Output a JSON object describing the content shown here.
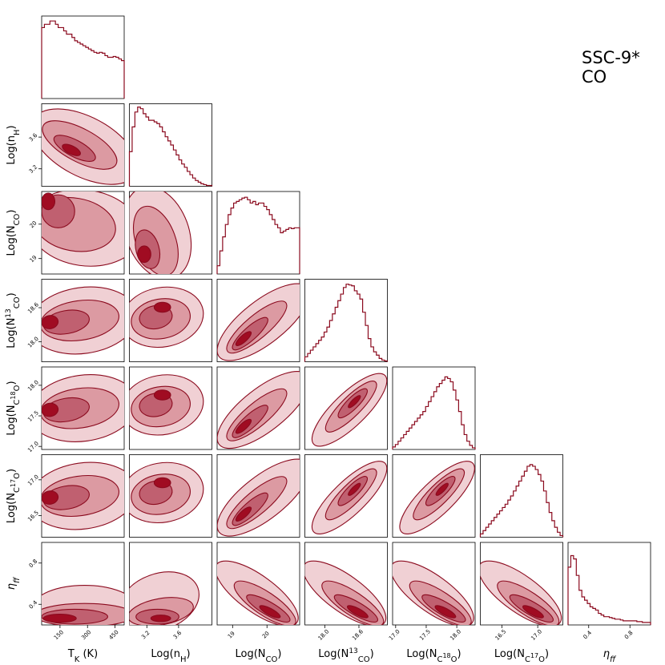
{
  "object_label": {
    "line1": "SSC-9*",
    "line2": "CO"
  },
  "colors": {
    "line": "#8b0a1e",
    "fill_outer": "#f0d0d4",
    "fill_mid": "#dc9aa2",
    "fill_inner": "#c06070",
    "fill_core": "#a00c22"
  },
  "chart_data": {
    "type": "corner",
    "parameters": [
      {
        "id": "tk",
        "label_html": "T<tspan font-size='10' baseline-shift='sub'>K</tspan> (K)",
        "range": [
          50,
          500
        ],
        "ticks": [
          150,
          300,
          450
        ],
        "tick_labels": [
          "150",
          "300",
          "450"
        ]
      },
      {
        "id": "nh",
        "label_html": "Log(n<tspan font-size='10' baseline-shift='sub'>H</tspan>)",
        "range": [
          2.98,
          4.02
        ],
        "ticks": [
          3.2,
          3.6
        ],
        "tick_labels": [
          "3.2",
          "3.6"
        ]
      },
      {
        "id": "nco",
        "label_html": "Log(N<tspan font-size='10' baseline-shift='sub'>CO</tspan>)",
        "range": [
          18.55,
          20.95
        ],
        "ticks": [
          19,
          20
        ],
        "tick_labels": [
          "19",
          "20"
        ]
      },
      {
        "id": "n13",
        "label_html": "Log(N<tspan font-size='9' baseline-shift='super'>13</tspan><tspan font-size='10' baseline-shift='sub'>CO</tspan>)",
        "range": [
          17.65,
          19.1
        ],
        "ticks": [
          18.0,
          18.6
        ],
        "tick_labels": [
          "18.0",
          "18.6"
        ]
      },
      {
        "id": "n18",
        "label_html": "Log(N<tspan font-size='10' baseline-shift='sub'>C<tspan font-size='8' baseline-shift='super'>18</tspan>O</tspan>)",
        "range": [
          16.95,
          18.3
        ],
        "ticks": [
          17.0,
          17.5,
          18.0
        ],
        "tick_labels": [
          "17.0",
          "17.5",
          "18.0"
        ]
      },
      {
        "id": "n17",
        "label_html": "Log(N<tspan font-size='10' baseline-shift='sub'>C<tspan font-size='8' baseline-shift='super'>17</tspan>O</tspan>)",
        "range": [
          16.2,
          17.35
        ],
        "ticks": [
          16.5,
          17.0
        ],
        "tick_labels": [
          "16.5",
          "17.0"
        ]
      },
      {
        "id": "eta",
        "label_html": "<tspan font-style='italic'>η<tspan font-size='10' baseline-shift='sub'>ff</tspan></tspan>",
        "range": [
          0.2,
          1.0
        ],
        "ticks": [
          0.4,
          0.8
        ],
        "tick_labels": [
          "0.4",
          "0.8"
        ]
      }
    ],
    "histograms": [
      [
        0.86,
        0.9,
        0.9,
        0.94,
        0.94,
        0.9,
        0.86,
        0.86,
        0.82,
        0.78,
        0.78,
        0.74,
        0.7,
        0.68,
        0.66,
        0.64,
        0.62,
        0.6,
        0.58,
        0.56,
        0.55,
        0.56,
        0.55,
        0.52,
        0.5,
        0.5,
        0.51,
        0.5,
        0.48,
        0.46
      ],
      [
        0.42,
        0.72,
        0.9,
        0.96,
        0.94,
        0.88,
        0.84,
        0.8,
        0.8,
        0.78,
        0.76,
        0.72,
        0.66,
        0.6,
        0.55,
        0.5,
        0.44,
        0.38,
        0.32,
        0.27,
        0.23,
        0.18,
        0.14,
        0.1,
        0.07,
        0.05,
        0.03,
        0.02,
        0.01,
        0.01
      ],
      [
        0.1,
        0.28,
        0.45,
        0.6,
        0.72,
        0.8,
        0.86,
        0.88,
        0.9,
        0.92,
        0.93,
        0.9,
        0.86,
        0.88,
        0.84,
        0.86,
        0.86,
        0.82,
        0.78,
        0.72,
        0.66,
        0.6,
        0.56,
        0.5,
        0.52,
        0.54,
        0.56,
        0.55,
        0.56,
        0.56
      ],
      [
        0.06,
        0.1,
        0.14,
        0.18,
        0.22,
        0.26,
        0.3,
        0.36,
        0.42,
        0.5,
        0.58,
        0.66,
        0.74,
        0.82,
        0.9,
        0.94,
        0.93,
        0.92,
        0.86,
        0.82,
        0.76,
        0.6,
        0.44,
        0.28,
        0.18,
        0.12,
        0.08,
        0.04,
        0.02,
        0.01
      ],
      [
        0.03,
        0.06,
        0.1,
        0.14,
        0.18,
        0.22,
        0.26,
        0.3,
        0.34,
        0.38,
        0.42,
        0.46,
        0.52,
        0.58,
        0.64,
        0.7,
        0.76,
        0.8,
        0.84,
        0.88,
        0.86,
        0.82,
        0.72,
        0.6,
        0.46,
        0.3,
        0.18,
        0.1,
        0.05,
        0.02
      ],
      [
        0.04,
        0.08,
        0.12,
        0.16,
        0.2,
        0.24,
        0.28,
        0.32,
        0.36,
        0.4,
        0.45,
        0.5,
        0.56,
        0.62,
        0.68,
        0.74,
        0.8,
        0.86,
        0.88,
        0.86,
        0.82,
        0.76,
        0.68,
        0.56,
        0.42,
        0.3,
        0.2,
        0.12,
        0.06,
        0.02
      ],
      [
        0.7,
        0.84,
        0.8,
        0.6,
        0.42,
        0.34,
        0.3,
        0.26,
        0.22,
        0.2,
        0.18,
        0.14,
        0.12,
        0.1,
        0.1,
        0.09,
        0.08,
        0.07,
        0.07,
        0.06,
        0.05,
        0.05,
        0.05,
        0.05,
        0.05,
        0.04,
        0.04,
        0.03,
        0.03,
        0.03
      ]
    ],
    "contour_levels": [
      "outer",
      "mid",
      "inner",
      "core"
    ]
  }
}
